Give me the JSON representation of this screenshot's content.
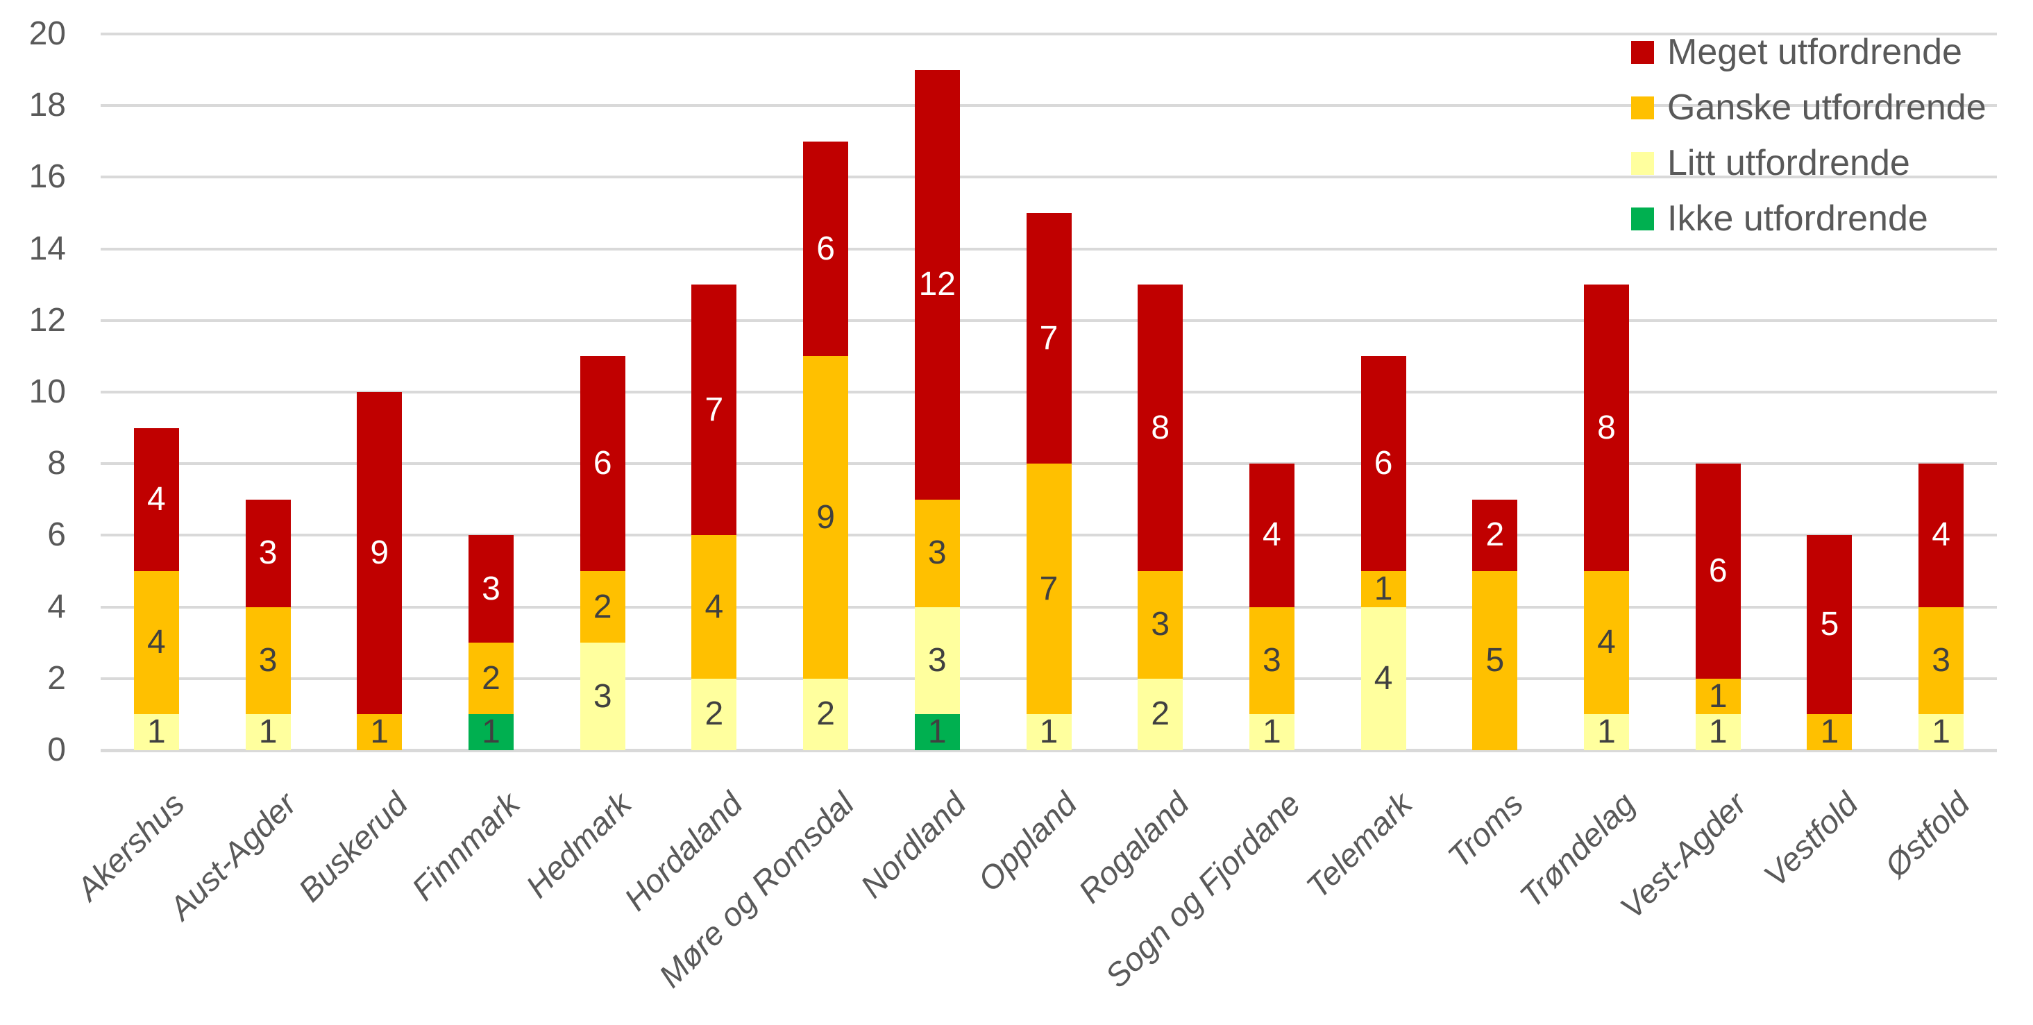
{
  "chart_data": {
    "type": "bar",
    "stacked": true,
    "title": "",
    "categories": [
      "Akershus",
      "Aust-Agder",
      "Buskerud",
      "Finnmark",
      "Hedmark",
      "Hordaland",
      "Møre og Romsdal",
      "Nordland",
      "Oppland",
      "Rogaland",
      "Sogn og Fjordane",
      "Telemark",
      "Troms",
      "Trøndelag",
      "Vest-Agder",
      "Vestfold",
      "Østfold"
    ],
    "series": [
      {
        "name": "Ikke utfordrende",
        "color": "#00B050",
        "value_label_color": "#404040",
        "values": [
          0,
          0,
          0,
          1,
          0,
          0,
          0,
          1,
          0,
          0,
          0,
          0,
          0,
          0,
          0,
          0,
          0
        ]
      },
      {
        "name": "Litt utfordrende",
        "color": "#FFFF9E",
        "value_label_color": "#404040",
        "values": [
          1,
          1,
          0,
          0,
          3,
          2,
          2,
          3,
          1,
          2,
          1,
          4,
          0,
          1,
          1,
          0,
          1
        ]
      },
      {
        "name": "Ganske utfordrende",
        "color": "#FFC000",
        "value_label_color": "#404040",
        "values": [
          4,
          3,
          1,
          2,
          2,
          4,
          9,
          3,
          7,
          3,
          3,
          1,
          5,
          4,
          1,
          1,
          3
        ]
      },
      {
        "name": "Meget utfordrende",
        "color": "#C00000",
        "value_label_color": "#FFFFFF",
        "values": [
          4,
          3,
          9,
          3,
          6,
          7,
          6,
          12,
          7,
          8,
          4,
          6,
          2,
          8,
          6,
          5,
          4
        ]
      }
    ],
    "legend": [
      {
        "label": "Meget utfordrende",
        "color": "#C00000"
      },
      {
        "label": "Ganske utfordrende",
        "color": "#FFC000"
      },
      {
        "label": "Litt utfordrende",
        "color": "#FFFF9E"
      },
      {
        "label": "Ikke utfordrende",
        "color": "#00B050"
      }
    ],
    "legend_position": "top-right",
    "grid": true,
    "y_axis": {
      "min": 0,
      "max": 20,
      "tick_step": 2,
      "tick_labels": [
        "0",
        "2",
        "4",
        "6",
        "8",
        "10",
        "12",
        "14",
        "16",
        "18",
        "20"
      ]
    },
    "palette": {
      "gridline": "#D9D9D9",
      "axis_text": "#595959",
      "value_label_dark": "#404040",
      "value_label_light": "#FFFFFF",
      "background": "#FFFFFF"
    }
  }
}
